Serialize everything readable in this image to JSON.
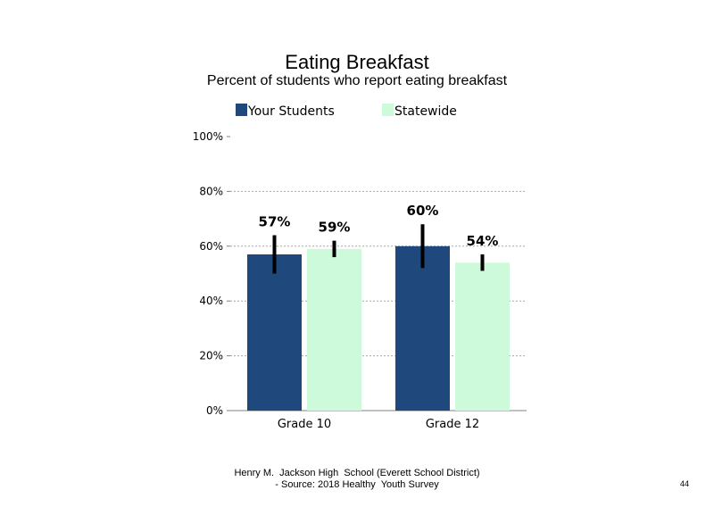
{
  "colors": {
    "your_students": "#1f497d",
    "statewide": "#ccfadb",
    "error_bar": "#000000",
    "grid": "#a6a6a6"
  },
  "footer": {
    "line1": "Henry M.  Jackson High  School (Everett School District)",
    "line2": "- Source: 2018 Healthy  Youth Survey"
  },
  "page_number": "44",
  "chart_data": {
    "type": "bar",
    "title": "Eating Breakfast",
    "subtitle": "Percent of students who report eating breakfast",
    "categories": [
      "Grade 10",
      "Grade 12"
    ],
    "series": [
      {
        "name": "Your Students",
        "values": [
          57,
          60
        ],
        "labels": [
          "57%",
          "60%"
        ],
        "error_low": [
          50,
          52
        ],
        "error_high": [
          64,
          68
        ]
      },
      {
        "name": "Statewide",
        "values": [
          59,
          54
        ],
        "labels": [
          "59%",
          "54%"
        ],
        "error_low": [
          56,
          51
        ],
        "error_high": [
          62,
          57
        ]
      }
    ],
    "ylim": [
      0,
      100
    ],
    "yticks": [
      0,
      20,
      40,
      60,
      80,
      100
    ],
    "ytick_labels": [
      "0%",
      "20%",
      "40%",
      "60%",
      "80%",
      "100%"
    ],
    "xlabel": "",
    "ylabel": "",
    "grid": true,
    "legend": "top"
  }
}
